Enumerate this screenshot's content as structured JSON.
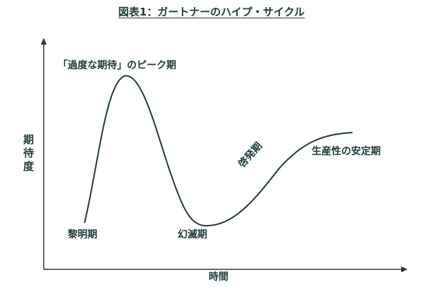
{
  "title": "図表1：ガートナーのハイプ・サイクル",
  "axes": {
    "y_label": "期待度",
    "x_label": "時間"
  },
  "phases": {
    "innovation_trigger": "黎明期",
    "peak": "「過度な期待」のピーク期",
    "trough": "幻滅期",
    "slope": "啓発期",
    "plateau": "生産性の安定期"
  },
  "colors": {
    "curve": "#1f3a3a",
    "axis": "#333333",
    "text": "#1f3a3a"
  }
}
